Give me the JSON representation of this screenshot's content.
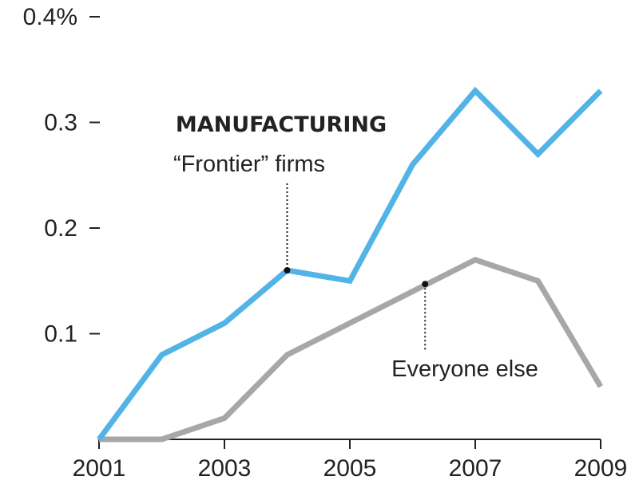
{
  "chart_data": {
    "type": "line",
    "title": "MANUFACTURING",
    "x": [
      2001,
      2002,
      2003,
      2004,
      2005,
      2006,
      2007,
      2008,
      2009
    ],
    "x_ticks": [
      2001,
      2003,
      2005,
      2007,
      2009
    ],
    "x_tick_labels": [
      "2001",
      "2003",
      "2005",
      "2007",
      "2009"
    ],
    "y_ticks": [
      0.1,
      0.2,
      0.3,
      0.4
    ],
    "y_tick_labels": [
      "0.1",
      "0.2",
      "0.3",
      "0.4%"
    ],
    "ylim": [
      0,
      0.4
    ],
    "xlim": [
      2001,
      2009
    ],
    "grid": false,
    "series": [
      {
        "name": "“Frontier” firms",
        "color": "#52b4e6",
        "values": [
          0,
          0.08,
          0.11,
          0.16,
          0.15,
          0.26,
          0.33,
          0.27,
          0.33
        ],
        "annotation_x": 2004,
        "annotation_y": 0.16
      },
      {
        "name": "Everyone else",
        "color": "#a6a7aa",
        "values": [
          0,
          0,
          0.02,
          0.08,
          0.11,
          0.14,
          0.17,
          0.15,
          0.05
        ],
        "annotation_x": 2006.2,
        "annotation_y": 0.147
      }
    ]
  }
}
